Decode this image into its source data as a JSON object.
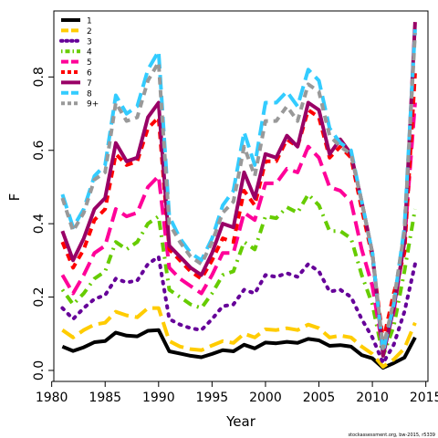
{
  "chart_data": {
    "type": "line",
    "xlabel": "Year",
    "ylabel": "F",
    "xlim": [
      1980.2,
      2015.2
    ],
    "ylim": [
      -0.03,
      0.98
    ],
    "xticks": [
      1980,
      1985,
      1990,
      1995,
      2000,
      2005,
      2010,
      2015
    ],
    "yticks": [
      0.0,
      0.2,
      0.4,
      0.6,
      0.8
    ],
    "ytick_labels": [
      "0.0",
      "0.2",
      "0.4",
      "0.6",
      "0.8"
    ],
    "legend_position": "top-left",
    "x": [
      1981,
      1982,
      1983,
      1984,
      1985,
      1986,
      1987,
      1988,
      1989,
      1990,
      1991,
      1992,
      1993,
      1994,
      1995,
      1996,
      1997,
      1998,
      1999,
      2000,
      2001,
      2002,
      2003,
      2004,
      2005,
      2006,
      2007,
      2008,
      2009,
      2010,
      2011,
      2012,
      2013,
      2014
    ],
    "series": [
      {
        "name": "1",
        "color": "#000000",
        "dash": "solid",
        "values": [
          0.065,
          0.053,
          0.063,
          0.077,
          0.08,
          0.103,
          0.095,
          0.093,
          0.108,
          0.11,
          0.052,
          0.046,
          0.04,
          0.036,
          0.045,
          0.055,
          0.052,
          0.07,
          0.06,
          0.076,
          0.074,
          0.078,
          0.075,
          0.086,
          0.082,
          0.067,
          0.069,
          0.065,
          0.042,
          0.033,
          0.007,
          0.02,
          0.035,
          0.09
        ]
      },
      {
        "name": "2",
        "color": "#ffcc00",
        "dash": "long",
        "values": [
          0.11,
          0.09,
          0.11,
          0.125,
          0.13,
          0.16,
          0.15,
          0.145,
          0.17,
          0.17,
          0.08,
          0.065,
          0.058,
          0.055,
          0.068,
          0.08,
          0.075,
          0.1,
          0.09,
          0.112,
          0.11,
          0.115,
          0.11,
          0.125,
          0.115,
          0.09,
          0.095,
          0.09,
          0.065,
          0.045,
          0.01,
          0.03,
          0.06,
          0.13
        ]
      },
      {
        "name": "3",
        "color": "#660099",
        "dash": "dot",
        "values": [
          0.17,
          0.14,
          0.17,
          0.195,
          0.205,
          0.25,
          0.24,
          0.245,
          0.29,
          0.31,
          0.14,
          0.125,
          0.115,
          0.11,
          0.14,
          0.175,
          0.18,
          0.22,
          0.21,
          0.26,
          0.255,
          0.265,
          0.255,
          0.29,
          0.27,
          0.215,
          0.22,
          0.2,
          0.14,
          0.09,
          0.02,
          0.07,
          0.16,
          0.29
        ]
      },
      {
        "name": "4",
        "color": "#66cc00",
        "dash": "dashdot",
        "values": [
          0.22,
          0.18,
          0.21,
          0.25,
          0.27,
          0.35,
          0.33,
          0.35,
          0.4,
          0.42,
          0.22,
          0.2,
          0.18,
          0.17,
          0.21,
          0.26,
          0.27,
          0.35,
          0.33,
          0.42,
          0.415,
          0.445,
          0.43,
          0.48,
          0.45,
          0.38,
          0.38,
          0.36,
          0.26,
          0.18,
          0.04,
          0.12,
          0.27,
          0.44
        ]
      },
      {
        "name": "5",
        "color": "#ff0099",
        "dash": "long",
        "values": [
          0.26,
          0.21,
          0.26,
          0.32,
          0.34,
          0.44,
          0.42,
          0.43,
          0.5,
          0.53,
          0.28,
          0.25,
          0.23,
          0.21,
          0.26,
          0.32,
          0.32,
          0.43,
          0.41,
          0.51,
          0.51,
          0.55,
          0.54,
          0.61,
          0.58,
          0.5,
          0.49,
          0.46,
          0.33,
          0.23,
          0.055,
          0.16,
          0.35,
          0.73
        ]
      },
      {
        "name": "6",
        "color": "#ff0000",
        "dash": "short",
        "values": [
          0.35,
          0.28,
          0.33,
          0.41,
          0.44,
          0.59,
          0.56,
          0.57,
          0.66,
          0.69,
          0.33,
          0.3,
          0.27,
          0.25,
          0.3,
          0.36,
          0.35,
          0.49,
          0.45,
          0.57,
          0.57,
          0.63,
          0.61,
          0.71,
          0.69,
          0.58,
          0.61,
          0.58,
          0.44,
          0.31,
          0.08,
          0.21,
          0.32,
          0.81
        ]
      },
      {
        "name": "7",
        "color": "#990066",
        "dash": "solid",
        "values": [
          0.38,
          0.3,
          0.36,
          0.44,
          0.47,
          0.62,
          0.57,
          0.58,
          0.69,
          0.73,
          0.34,
          0.31,
          0.28,
          0.26,
          0.32,
          0.4,
          0.39,
          0.54,
          0.47,
          0.59,
          0.58,
          0.64,
          0.61,
          0.73,
          0.71,
          0.59,
          0.63,
          0.59,
          0.46,
          0.32,
          0.04,
          0.17,
          0.35,
          0.95
        ]
      },
      {
        "name": "8",
        "color": "#33ccff",
        "dash": "long",
        "values": [
          0.48,
          0.39,
          0.44,
          0.53,
          0.56,
          0.75,
          0.7,
          0.72,
          0.82,
          0.87,
          0.42,
          0.36,
          0.32,
          0.3,
          0.36,
          0.45,
          0.49,
          0.65,
          0.56,
          0.73,
          0.73,
          0.76,
          0.72,
          0.82,
          0.79,
          0.66,
          0.62,
          0.6,
          0.46,
          0.32,
          0.05,
          0.18,
          0.39,
          0.93
        ]
      },
      {
        "name": "9+",
        "color": "#999999",
        "dash": "short",
        "values": [
          0.47,
          0.38,
          0.43,
          0.52,
          0.54,
          0.73,
          0.68,
          0.69,
          0.79,
          0.84,
          0.4,
          0.35,
          0.31,
          0.29,
          0.35,
          0.43,
          0.46,
          0.61,
          0.53,
          0.68,
          0.68,
          0.72,
          0.68,
          0.78,
          0.76,
          0.64,
          0.61,
          0.59,
          0.46,
          0.32,
          0.06,
          0.19,
          0.38,
          0.92
        ]
      }
    ],
    "grid": false,
    "credit": "stockassessment.org, bw-2015, r5339"
  }
}
